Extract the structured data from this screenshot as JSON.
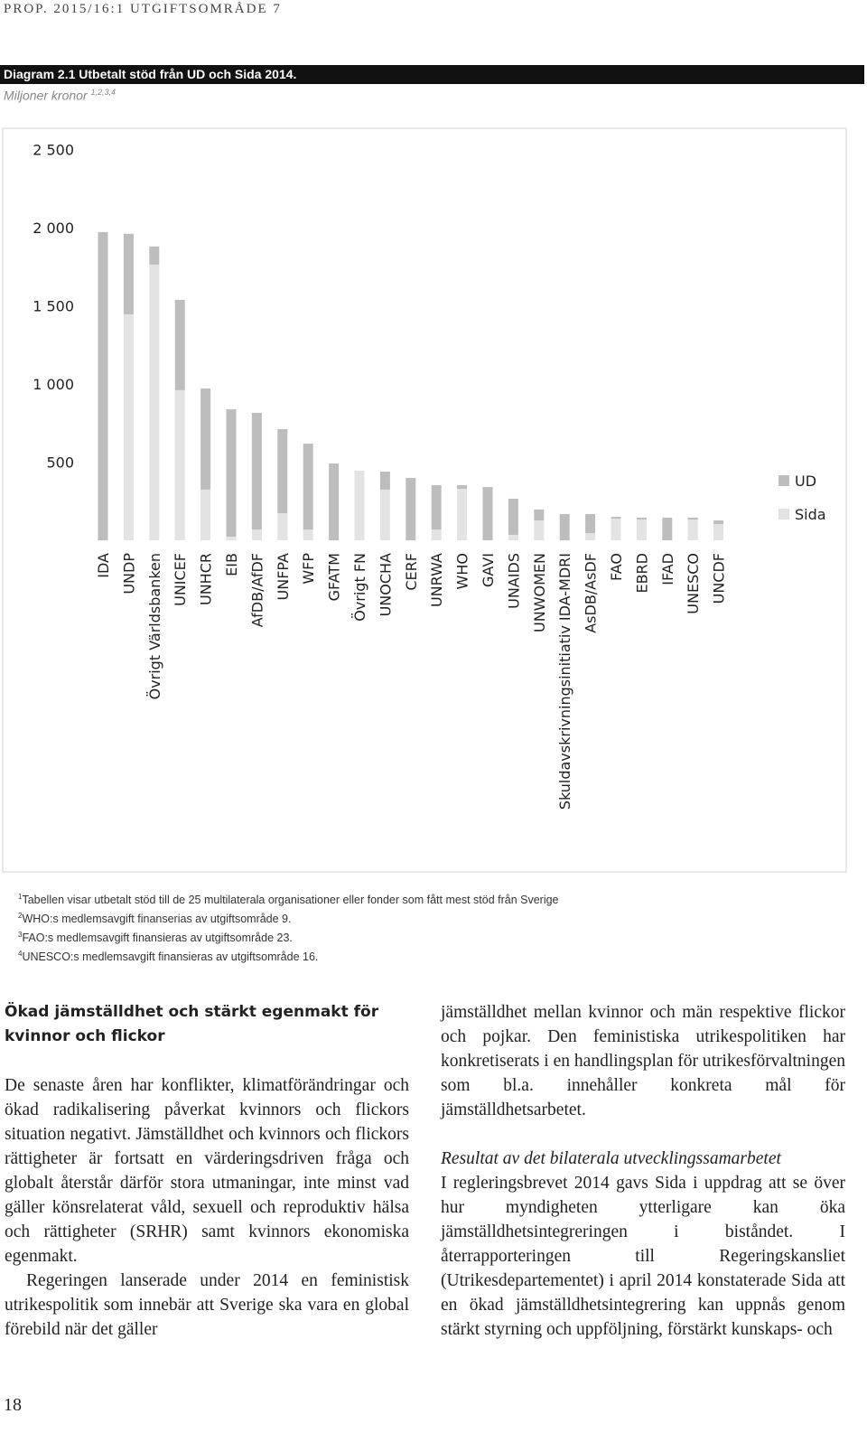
{
  "header": "PROP. 2015/16:1 UTGIFTSOMRÅDE 7",
  "chart_data": {
    "type": "stacked-bar",
    "title": "Diagram 2.1 Utbetalt stöd från UD och Sida 2014.",
    "subtitle": "Miljoner kronor",
    "subtitle_sup": "1,2,3,4",
    "categories": [
      "IDA",
      "UNDP",
      "Övrigt Världsbanken",
      "UNICEF",
      "UNHCR",
      "EIB",
      "AfDB/AfDF",
      "UNFPA",
      "WFP",
      "GFATM",
      "Övrigt FN",
      "UNOCHA",
      "CERF",
      "UNRWA",
      "WHO",
      "GAVI",
      "UNAIDS",
      "UNWOMEN",
      "Skuldavskrivningsinitiativ IDA-MDRI",
      "AsDB/AsDF",
      "FAO",
      "EBRD",
      "IFAD",
      "UNESCO",
      "UNCDF"
    ],
    "series": [
      {
        "name": "UD",
        "color": "#bdbdbd",
        "values": [
          1971,
          515,
          116,
          578,
          647,
          815,
          746,
          538,
          549,
          491,
          0,
          115,
          399,
          284,
          24,
          341,
          231,
          70,
          168,
          122,
          11,
          12,
          145,
          12,
          23
        ]
      },
      {
        "name": "Sida",
        "color": "#e3e3e3",
        "values": [
          0,
          1445,
          1763,
          960,
          324,
          23,
          69,
          173,
          69,
          0,
          445,
          324,
          0,
          69,
          329,
          0,
          35,
          127,
          0,
          46,
          139,
          133,
          0,
          133,
          104
        ]
      }
    ],
    "ylim": [
      0,
      2600
    ],
    "yticks": [
      {
        "value": 500,
        "label": "500"
      },
      {
        "value": 1000,
        "label": "1 000"
      },
      {
        "value": 1500,
        "label": "1 500"
      },
      {
        "value": 2000,
        "label": "2 000"
      },
      {
        "value": 2500,
        "label": "2 500"
      }
    ],
    "grid": false,
    "legend": "right",
    "notes": [
      {
        "sup": "1",
        "text": "Tabellen visar utbetalt stöd till de 25 multilaterala organisationer eller fonder som fått mest stöd från Sverige"
      },
      {
        "sup": "2",
        "text": "WHO:s medlemsavgift finanserias av utgiftsområde 9."
      },
      {
        "sup": "3",
        "text": "FAO:s medlemsavgift finansieras av utgiftsområde 23."
      },
      {
        "sup": "4",
        "text": "UNESCO:s medlemsavgift finansieras av utgiftsområde 16."
      }
    ]
  },
  "body": {
    "heading": "Ökad jämställdhet och stärkt egenmakt för kvinnor och flickor",
    "left_paragraphs": [
      "De senaste åren har konflikter, klimat­förändringar och ökad radikalisering påverkat kvinnors och flickors situation negativt. Jämställdhet och kvinnors och flickors rättigheter är fortsatt en värderingsdriven fråga och globalt återstår därför stora utmaningar, inte minst vad gäller könsrelaterat våld, sexuell och reproduktiv hälsa och rättigheter (SRHR) samt kvinnors ekonomiska egenmakt.",
      "Regeringen lanserade under 2014 en feministisk utrikespolitik som innebär att Sverige ska vara en global förebild när det gäller"
    ],
    "right_paragraph_1": "jämställdhet mellan kvinnor och män respektive flickor och pojkar. Den feministiska utrikespolitiken har konkretiserats i en handlingsplan för utrikesförvaltningen som bl.a. innehåller konkreta mål för jämställdhetsarbetet.",
    "subheading": "Resultat av det bilaterala utvecklingssamarbetet",
    "right_paragraph_2": "I regleringsbrevet 2014 gavs Sida i uppdrag att se över hur myndigheten ytterligare kan öka jämställdhetsintegreringen i biståndet. I återrapporteringen till Regeringskansliet (Utrikesdepartementet) i april 2014 konstaterade Sida att en ökad jämställdhets­integrering kan uppnås genom stärkt styrning och uppföljning, förstärkt kunskaps- och"
  },
  "page_number": "18"
}
